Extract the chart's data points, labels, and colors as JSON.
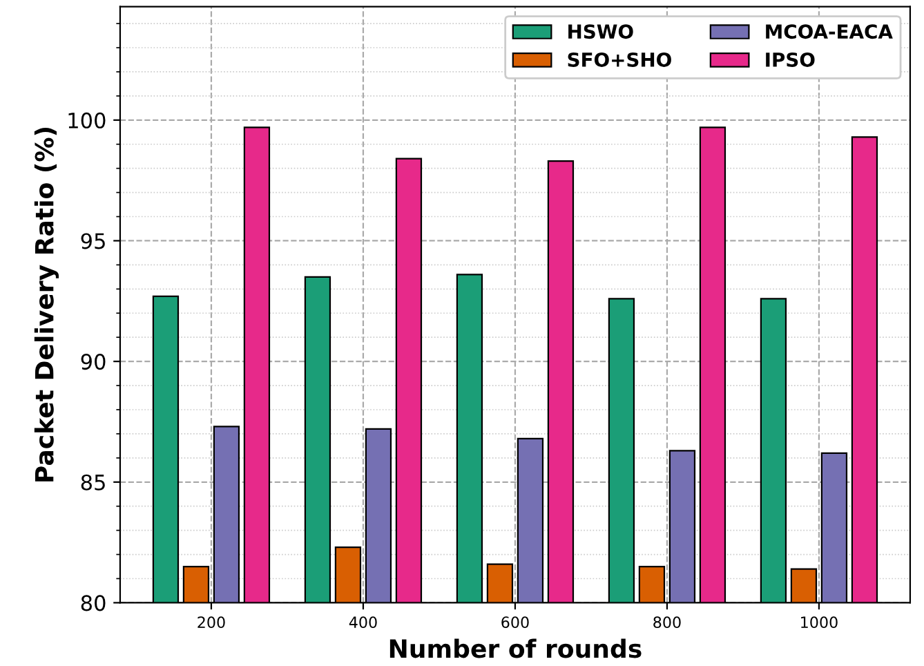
{
  "chart_data": {
    "type": "bar",
    "xlabel": "Number of rounds",
    "ylabel": "Packet Delivery Ratio (%)",
    "categories": [
      "200",
      "400",
      "600",
      "800",
      "1000"
    ],
    "series": [
      {
        "name": "HSWO",
        "color": "#1b9e77",
        "values": [
          92.7,
          93.5,
          93.6,
          92.6,
          92.6
        ]
      },
      {
        "name": "SFO+SHO",
        "color": "#d95f02",
        "values": [
          81.5,
          82.3,
          81.6,
          81.5,
          81.4
        ]
      },
      {
        "name": "MCOA-EACA",
        "color": "#7570b3",
        "values": [
          87.3,
          87.2,
          86.8,
          86.3,
          86.2
        ]
      },
      {
        "name": "IPSO",
        "color": "#e7298a",
        "values": [
          99.7,
          98.4,
          98.3,
          99.7,
          99.3
        ]
      }
    ],
    "ylim": [
      80,
      104.7
    ],
    "yticks": [
      80,
      85,
      90,
      95,
      100
    ],
    "grid": true,
    "legend": "top right"
  }
}
